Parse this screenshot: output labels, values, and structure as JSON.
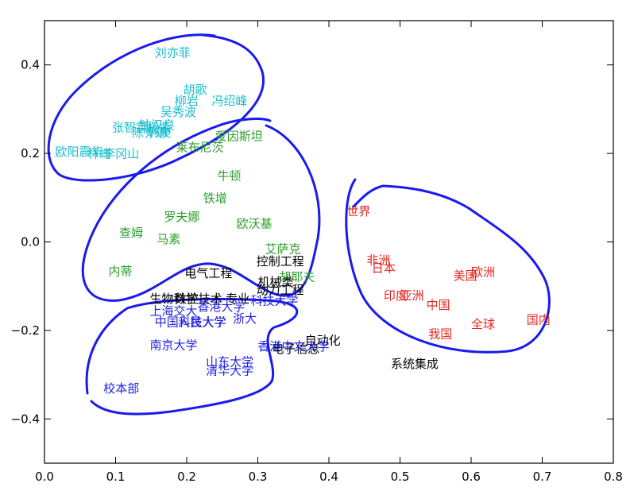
{
  "chart_data": {
    "type": "scatter",
    "title": "",
    "xlabel": "",
    "ylabel": "",
    "xlim": [
      0.0,
      0.8
    ],
    "ylim": [
      -0.5,
      0.5
    ],
    "xticks": [
      0.0,
      0.1,
      0.2,
      0.3,
      0.4,
      0.5,
      0.6,
      0.7,
      0.8
    ],
    "xtick_labels": [
      "0.0",
      "0.1",
      "0.2",
      "0.3",
      "0.4",
      "0.5",
      "0.6",
      "0.7",
      "0.8"
    ],
    "yticks": [
      0.4,
      0.2,
      0.0,
      -0.2,
      -0.4
    ],
    "ytick_labels": [
      "0.4",
      "0.2",
      "0.0",
      "−0.2",
      "−0.4"
    ],
    "grid": false,
    "legend": "none",
    "colors": {
      "cyan": "#17becf",
      "green": "#2ca02c",
      "blue": "#1f1fe0",
      "red": "#e8251f",
      "black": "#000000",
      "outline": "#1a1aee"
    },
    "series": [
      {
        "color": "cyan",
        "points": [
          {
            "label": "刘亦菲",
            "x": 0.155,
            "y": 0.418
          },
          {
            "label": "胡歌",
            "x": 0.195,
            "y": 0.335
          },
          {
            "label": "柳岩",
            "x": 0.183,
            "y": 0.31
          },
          {
            "label": "冯绍峰",
            "x": 0.235,
            "y": 0.31
          },
          {
            "label": "吴秀波",
            "x": 0.163,
            "y": 0.285
          },
          {
            "label": "钟汉良",
            "x": 0.133,
            "y": 0.255
          },
          {
            "label": "张智霖",
            "x": 0.095,
            "y": 0.25
          },
          {
            "label": "杨紫",
            "x": 0.145,
            "y": 0.25
          },
          {
            "label": "韩庚",
            "x": 0.145,
            "y": 0.238
          },
          {
            "label": "陈乔恩",
            "x": 0.123,
            "y": 0.238
          },
          {
            "label": "欧阳震华",
            "x": 0.015,
            "y": 0.195
          },
          {
            "label": "林峰",
            "x": 0.06,
            "y": 0.19
          },
          {
            "label": "李冈山",
            "x": 0.083,
            "y": 0.19
          }
        ]
      },
      {
        "color": "green",
        "points": [
          {
            "label": "爱因斯坦",
            "x": 0.24,
            "y": 0.23
          },
          {
            "label": "莱布尼茨",
            "x": 0.185,
            "y": 0.205
          },
          {
            "label": "牛顿",
            "x": 0.243,
            "y": 0.14
          },
          {
            "label": "铁增",
            "x": 0.223,
            "y": 0.09
          },
          {
            "label": "罗夫娜",
            "x": 0.168,
            "y": 0.048
          },
          {
            "label": "欧沃基",
            "x": 0.27,
            "y": 0.032
          },
          {
            "label": "查姆",
            "x": 0.105,
            "y": 0.012
          },
          {
            "label": "马素",
            "x": 0.158,
            "y": -0.003
          },
          {
            "label": "艾萨克",
            "x": 0.31,
            "y": -0.025
          },
          {
            "label": "内蒂",
            "x": 0.09,
            "y": -0.075
          },
          {
            "label": "胡耶夫",
            "x": 0.33,
            "y": -0.088
          }
        ]
      },
      {
        "color": "black",
        "points": [
          {
            "label": "控制工程",
            "x": 0.298,
            "y": -0.053
          },
          {
            "label": "电气工程",
            "x": 0.197,
            "y": -0.08
          },
          {
            "label": "机械类",
            "x": 0.3,
            "y": -0.1
          },
          {
            "label": "动力工程",
            "x": 0.298,
            "y": -0.118
          },
          {
            "label": "生物科学",
            "x": 0.148,
            "y": -0.137
          },
          {
            "label": "数控技术",
            "x": 0.183,
            "y": -0.137
          },
          {
            "label": "专业",
            "x": 0.255,
            "y": -0.137
          },
          {
            "label": "自动化",
            "x": 0.366,
            "y": -0.232
          },
          {
            "label": "电子信息",
            "x": 0.32,
            "y": -0.25
          },
          {
            "label": "系统集成",
            "x": 0.487,
            "y": -0.285
          }
        ]
      },
      {
        "color": "blue",
        "points": [
          {
            "label": "上海交大",
            "x": 0.148,
            "y": -0.165
          },
          {
            "label": "香港大学",
            "x": 0.215,
            "y": -0.155
          },
          {
            "label": "科技大学",
            "x": 0.29,
            "y": -0.142
          },
          {
            "label": "中国科技大学",
            "x": 0.155,
            "y": -0.19
          },
          {
            "label": "人民大学",
            "x": 0.188,
            "y": -0.19
          },
          {
            "label": "浙大",
            "x": 0.265,
            "y": -0.182
          },
          {
            "label": "南京大学",
            "x": 0.148,
            "y": -0.242
          },
          {
            "label": "香港中文大学",
            "x": 0.3,
            "y": -0.245
          },
          {
            "label": "山东大学",
            "x": 0.227,
            "y": -0.28
          },
          {
            "label": "清华大学",
            "x": 0.227,
            "y": -0.3
          },
          {
            "label": "校本部",
            "x": 0.083,
            "y": -0.34
          }
        ]
      },
      {
        "color": "red",
        "points": [
          {
            "label": "世界",
            "x": 0.425,
            "y": 0.06
          },
          {
            "label": "非洲",
            "x": 0.453,
            "y": -0.05
          },
          {
            "label": "日本",
            "x": 0.46,
            "y": -0.068
          },
          {
            "label": "欧洲",
            "x": 0.6,
            "y": -0.077
          },
          {
            "label": "美国",
            "x": 0.575,
            "y": -0.085
          },
          {
            "label": "印度",
            "x": 0.477,
            "y": -0.13
          },
          {
            "label": "亚洲",
            "x": 0.5,
            "y": -0.13
          },
          {
            "label": "中国",
            "x": 0.537,
            "y": -0.152
          },
          {
            "label": "国内",
            "x": 0.678,
            "y": -0.185
          },
          {
            "label": "全球",
            "x": 0.6,
            "y": -0.195
          },
          {
            "label": "我国",
            "x": 0.54,
            "y": -0.217
          }
        ]
      }
    ]
  }
}
